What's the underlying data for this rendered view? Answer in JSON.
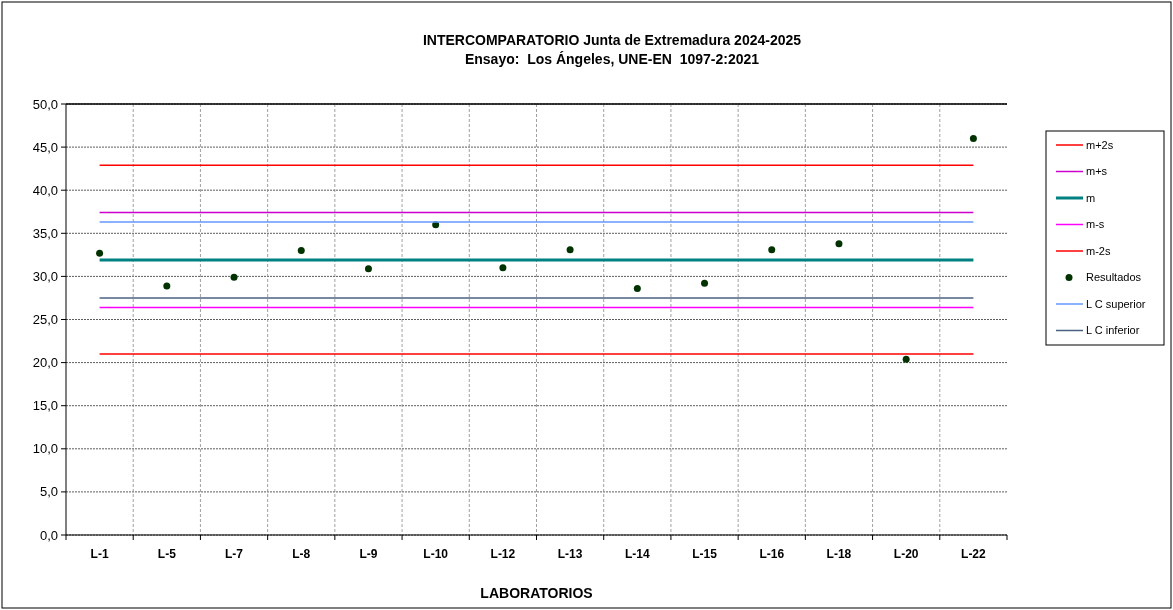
{
  "chart_data": {
    "type": "line",
    "title": "INTERCOMPARATORIO Junta de Extremadura 2024-2025",
    "subtitle": "Ensayo:  Los Ángeles, UNE-EN  1097-2:2021",
    "xlabel": "LABORATORIOS",
    "categories": [
      "L-1",
      "L-5",
      "L-7",
      "L-8",
      "L-9",
      "L-10",
      "L-12",
      "L-13",
      "L-14",
      "L-15",
      "L-16",
      "L-18",
      "L-20",
      "L-22"
    ],
    "series": [
      {
        "name": "m+2s",
        "color": "#ff0000",
        "values": [
          42.9,
          42.9,
          42.9,
          42.9,
          42.9,
          42.9,
          42.9,
          42.9,
          42.9,
          42.9,
          42.9,
          42.9,
          42.9,
          42.9
        ]
      },
      {
        "name": "m+s",
        "color": "#cc00cc",
        "values": [
          37.4,
          37.4,
          37.4,
          37.4,
          37.4,
          37.4,
          37.4,
          37.4,
          37.4,
          37.4,
          37.4,
          37.4,
          37.4,
          37.4
        ]
      },
      {
        "name": "m",
        "color": "#008080",
        "values": [
          31.9,
          31.9,
          31.9,
          31.9,
          31.9,
          31.9,
          31.9,
          31.9,
          31.9,
          31.9,
          31.9,
          31.9,
          31.9,
          31.9
        ]
      },
      {
        "name": "m-s",
        "color": "#ff00ff",
        "values": [
          26.4,
          26.4,
          26.4,
          26.4,
          26.4,
          26.4,
          26.4,
          26.4,
          26.4,
          26.4,
          26.4,
          26.4,
          26.4,
          26.4
        ]
      },
      {
        "name": "m-2s",
        "color": "#ff0000",
        "values": [
          21.0,
          21.0,
          21.0,
          21.0,
          21.0,
          21.0,
          21.0,
          21.0,
          21.0,
          21.0,
          21.0,
          21.0,
          21.0,
          21.0
        ]
      },
      {
        "name": "Resultados",
        "type": "scatter",
        "color": "#003300",
        "values": [
          32.7,
          28.9,
          29.9,
          33.0,
          30.9,
          36.0,
          31.0,
          33.1,
          28.6,
          29.2,
          33.1,
          33.8,
          20.4,
          46.0
        ]
      },
      {
        "name": "L C superior",
        "color": "#6699ff",
        "values": [
          36.3,
          36.3,
          36.3,
          36.3,
          36.3,
          36.3,
          36.3,
          36.3,
          36.3,
          36.3,
          36.3,
          36.3,
          36.3,
          36.3
        ]
      },
      {
        "name": "L C inferior",
        "color": "#4a6080",
        "values": [
          27.5,
          27.5,
          27.5,
          27.5,
          27.5,
          27.5,
          27.5,
          27.5,
          27.5,
          27.5,
          27.5,
          27.5,
          27.5,
          27.5
        ]
      }
    ],
    "ylim": [
      0,
      50
    ],
    "yticks": [
      {
        "value": 0,
        "label": "0,0"
      },
      {
        "value": 5,
        "label": "5,0"
      },
      {
        "value": 10,
        "label": "10,0"
      },
      {
        "value": 15,
        "label": "15,0"
      },
      {
        "value": 20,
        "label": "20,0"
      },
      {
        "value": 25,
        "label": "25,0"
      },
      {
        "value": 30,
        "label": "30,0"
      },
      {
        "value": 35,
        "label": "35,0"
      },
      {
        "value": 40,
        "label": "40,0"
      },
      {
        "value": 45,
        "label": "45,0"
      },
      {
        "value": 50,
        "label": "50,0"
      }
    ],
    "grid": true,
    "legend": "right"
  }
}
